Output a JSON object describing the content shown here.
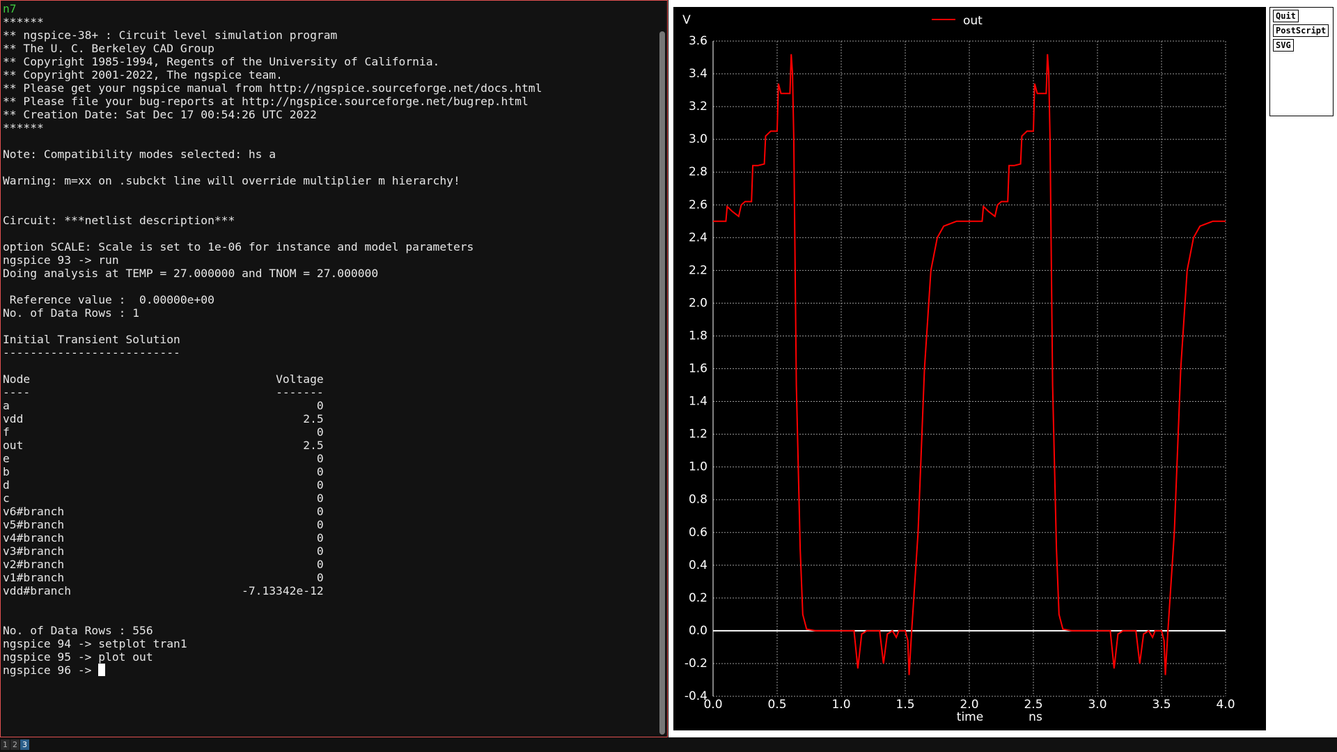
{
  "window_title": "n7",
  "terminal": {
    "sections": [
      {
        "lines": [
          "******",
          "** ngspice-38+ : Circuit level simulation program",
          "** The U. C. Berkeley CAD Group",
          "** Copyright 1985-1994, Regents of the University of California.",
          "** Copyright 2001-2022, The ngspice team.",
          "** Please get your ngspice manual from http://ngspice.sourceforge.net/docs.html",
          "** Please file your bug-reports at http://ngspice.sourceforge.net/bugrep.html",
          "** Creation Date: Sat Dec 17 00:54:26 UTC 2022",
          "******"
        ]
      },
      {
        "lines": [
          "Note: Compatibility modes selected: hs a"
        ]
      },
      {
        "lines": [
          "Warning: m=xx on .subckt line will override multiplier m hierarchy!"
        ]
      },
      {
        "lines": [
          "Circuit: ***netlist description***"
        ]
      },
      {
        "lines": [
          "option SCALE: Scale is set to 1e-06 for instance and model parameters",
          "ngspice 93 -> run",
          "Doing analysis at TEMP = 27.000000 and TNOM = 27.000000"
        ]
      },
      {
        "lines": [
          " Reference value :  0.00000e+00",
          "No. of Data Rows : 1"
        ]
      },
      {
        "lines": [
          "Initial Transient Solution",
          "--------------------------"
        ]
      },
      {
        "rows": [
          [
            "Node",
            "Voltage"
          ],
          [
            "----",
            "-------"
          ],
          [
            "a",
            "0"
          ],
          [
            "vdd",
            "2.5"
          ],
          [
            "f",
            "0"
          ],
          [
            "out",
            "2.5"
          ],
          [
            "e",
            "0"
          ],
          [
            "b",
            "0"
          ],
          [
            "d",
            "0"
          ],
          [
            "c",
            "0"
          ],
          [
            "v6#branch",
            "0"
          ],
          [
            "v5#branch",
            "0"
          ],
          [
            "v4#branch",
            "0"
          ],
          [
            "v3#branch",
            "0"
          ],
          [
            "v2#branch",
            "0"
          ],
          [
            "v1#branch",
            "0"
          ],
          [
            "vdd#branch",
            "-7.13342e-12"
          ]
        ]
      },
      {
        "lines": [
          "No. of Data Rows : 556",
          "ngspice 94 -> setplot tran1",
          "ngspice 95 -> plot out",
          "ngspice 96 ->"
        ]
      }
    ]
  },
  "buttons": [
    "Quit",
    "PostScript",
    "SVG"
  ],
  "workspaces": [
    "1",
    "2",
    "3"
  ],
  "chart_data": {
    "type": "line",
    "y_label": "V",
    "x_label": "time",
    "x_unit": "ns",
    "grid": true,
    "xlim": [
      0,
      4
    ],
    "ylim": [
      -0.4,
      3.6
    ],
    "xticks": [
      {
        "value": 0,
        "label": "0.0"
      },
      0.5,
      {
        "value": 1,
        "label": "1.0"
      },
      1.5,
      {
        "value": 2,
        "label": "2.0"
      },
      2.5,
      {
        "value": 3,
        "label": "3.0"
      },
      3.5,
      {
        "value": 4,
        "label": "4.0"
      }
    ],
    "yticks": [
      -0.4,
      -0.2,
      {
        "value": 0,
        "label": "0.0"
      },
      0.2,
      0.4,
      0.6,
      0.8,
      {
        "value": 1,
        "label": "1.0"
      },
      1.2,
      1.4,
      1.6,
      1.8,
      {
        "value": 2,
        "label": "2.0"
      },
      2.2,
      2.4,
      2.6,
      2.8,
      {
        "value": 3,
        "label": "3.0"
      },
      3.2,
      3.4,
      3.6
    ],
    "series": [
      {
        "name": "out",
        "color": "#ff0000",
        "x": [
          0,
          0.1,
          0.11,
          0.15,
          0.2,
          0.22,
          0.25,
          0.3,
          0.31,
          0.35,
          0.4,
          0.41,
          0.45,
          0.5,
          0.51,
          0.53,
          0.6,
          0.61,
          0.62,
          0.63,
          0.65,
          0.68,
          0.7,
          0.73,
          0.8,
          1.1,
          1.13,
          1.16,
          1.2,
          1.3,
          1.33,
          1.36,
          1.4,
          1.43,
          1.45,
          1.5,
          1.52,
          1.53,
          1.55,
          1.6,
          1.65,
          1.7,
          1.75,
          1.8,
          1.9,
          2.0,
          2.1,
          2.11,
          2.15,
          2.2,
          2.22,
          2.25,
          2.3,
          2.31,
          2.35,
          2.4,
          2.41,
          2.45,
          2.5,
          2.51,
          2.53,
          2.6,
          2.61,
          2.62,
          2.63,
          2.65,
          2.68,
          2.7,
          2.73,
          2.8,
          3.1,
          3.13,
          3.16,
          3.2,
          3.3,
          3.33,
          3.36,
          3.4,
          3.43,
          3.45,
          3.5,
          3.52,
          3.53,
          3.55,
          3.6,
          3.65,
          3.7,
          3.75,
          3.8,
          3.9,
          4.0
        ],
        "values": [
          2.5,
          2.5,
          2.59,
          2.56,
          2.53,
          2.6,
          2.62,
          2.62,
          2.84,
          2.84,
          2.85,
          3.02,
          3.05,
          3.05,
          3.34,
          3.28,
          3.28,
          3.52,
          3.4,
          3.0,
          1.5,
          0.5,
          0.1,
          0.01,
          0,
          0,
          -0.23,
          -0.02,
          0,
          0,
          -0.2,
          -0.02,
          0,
          -0.04,
          0,
          0,
          -0.06,
          -0.27,
          0,
          0.6,
          1.6,
          2.2,
          2.4,
          2.47,
          2.5,
          2.5,
          2.5,
          2.59,
          2.56,
          2.53,
          2.6,
          2.62,
          2.62,
          2.84,
          2.84,
          2.85,
          3.02,
          3.05,
          3.05,
          3.34,
          3.28,
          3.28,
          3.52,
          3.4,
          3.0,
          1.5,
          0.5,
          0.1,
          0.01,
          0,
          0,
          -0.23,
          -0.02,
          0,
          0,
          -0.2,
          -0.02,
          0,
          -0.04,
          0,
          0,
          -0.06,
          -0.27,
          0,
          0.6,
          1.6,
          2.2,
          2.4,
          2.47,
          2.5,
          2.5
        ]
      }
    ]
  }
}
